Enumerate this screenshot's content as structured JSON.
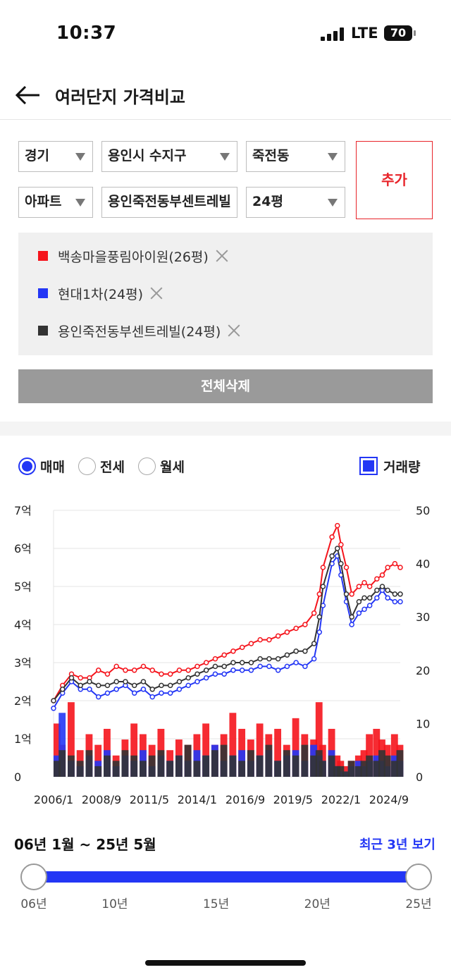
{
  "status_bar": {
    "time": "10:37",
    "network": "LTE",
    "battery": "70"
  },
  "header": {
    "title": "여러단지 가격비교"
  },
  "filters": {
    "region": "경기",
    "city": "용인시 수지구",
    "dong": "죽전동",
    "type": "아파트",
    "complex": "용인죽전동부센트레빌",
    "size": "24평",
    "add_label": "추가"
  },
  "selected": [
    {
      "label": "백송마을풍림아이원(26평)",
      "color": "#f5141c"
    },
    {
      "label": "현대1차(24평)",
      "color": "#2336f5"
    },
    {
      "label": "용인죽전동부센트레빌(24평)",
      "color": "#333333"
    }
  ],
  "delete_all_label": "전체삭제",
  "trade_types": {
    "sale": "매매",
    "jeonse": "전세",
    "monthly": "월세",
    "selected": "매매"
  },
  "volume_label": "거래량",
  "chart_data": {
    "type": "line",
    "x_tick_labels": [
      "2006/1",
      "2008/9",
      "2011/5",
      "2014/1",
      "2016/9",
      "2019/5",
      "2022/1",
      "2024/9"
    ],
    "y_left_labels": [
      "0",
      "1억",
      "2억",
      "3억",
      "4억",
      "5억",
      "6억",
      "7억"
    ],
    "y_right_labels": [
      "0",
      "10",
      "20",
      "30",
      "40",
      "50"
    ],
    "ylim_left": [
      0,
      7
    ],
    "ylim_right": [
      0,
      50
    ],
    "grid": true,
    "x": [
      2006.0,
      2006.5,
      2007.0,
      2007.5,
      2008.0,
      2008.5,
      2009.0,
      2009.5,
      2010.0,
      2010.5,
      2011.0,
      2011.5,
      2012.0,
      2012.5,
      2013.0,
      2013.5,
      2014.0,
      2014.5,
      2015.0,
      2015.5,
      2016.0,
      2016.5,
      2017.0,
      2017.5,
      2018.0,
      2018.5,
      2019.0,
      2019.5,
      2020.0,
      2020.5,
      2020.8,
      2021.0,
      2021.5,
      2021.8,
      2022.0,
      2022.3,
      2022.6,
      2023.0,
      2023.3,
      2023.6,
      2024.0,
      2024.3,
      2024.6,
      2025.0,
      2025.3
    ],
    "series": [
      {
        "name": "백송마을풍림아이원(26평)",
        "color": "#f5141c",
        "values": [
          2.0,
          2.4,
          2.7,
          2.6,
          2.6,
          2.8,
          2.7,
          2.9,
          2.8,
          2.8,
          2.9,
          2.8,
          2.7,
          2.7,
          2.8,
          2.8,
          2.9,
          3.0,
          3.1,
          3.2,
          3.3,
          3.4,
          3.5,
          3.6,
          3.6,
          3.7,
          3.8,
          3.9,
          4.0,
          4.3,
          4.8,
          5.5,
          6.3,
          6.6,
          6.1,
          5.5,
          4.8,
          5.0,
          5.1,
          5.0,
          5.2,
          5.3,
          5.5,
          5.6,
          5.5
        ]
      },
      {
        "name": "현대1차(24평)",
        "color": "#2336f5",
        "values": [
          1.8,
          2.2,
          2.5,
          2.3,
          2.3,
          2.1,
          2.2,
          2.3,
          2.4,
          2.2,
          2.3,
          2.1,
          2.2,
          2.2,
          2.3,
          2.4,
          2.5,
          2.6,
          2.7,
          2.7,
          2.8,
          2.8,
          2.8,
          2.9,
          2.9,
          2.8,
          2.9,
          3.0,
          2.9,
          3.1,
          3.8,
          4.5,
          5.6,
          5.8,
          5.3,
          4.6,
          4.0,
          4.3,
          4.4,
          4.5,
          4.7,
          4.9,
          4.7,
          4.6,
          4.6
        ]
      },
      {
        "name": "용인죽전동부센트레빌(24평)",
        "color": "#333333",
        "values": [
          2.0,
          2.3,
          2.6,
          2.4,
          2.5,
          2.4,
          2.4,
          2.5,
          2.5,
          2.4,
          2.5,
          2.3,
          2.4,
          2.4,
          2.5,
          2.6,
          2.7,
          2.8,
          2.9,
          2.9,
          3.0,
          3.0,
          3.0,
          3.1,
          3.1,
          3.1,
          3.2,
          3.3,
          3.3,
          3.5,
          4.2,
          5.0,
          5.8,
          6.0,
          5.6,
          4.8,
          4.2,
          4.6,
          4.7,
          4.7,
          4.9,
          5.0,
          4.9,
          4.8,
          4.8
        ]
      }
    ],
    "volume_bars": [
      {
        "color": "#f5141c",
        "values": [
          10,
          6,
          14,
          5,
          8,
          6,
          9,
          4,
          7,
          10,
          8,
          6,
          9,
          5,
          7,
          6,
          8,
          10,
          6,
          8,
          12,
          9,
          7,
          10,
          8,
          9,
          6,
          11,
          8,
          7,
          14,
          6,
          9,
          4,
          3,
          2,
          3,
          4,
          5,
          8,
          9,
          7,
          6,
          8,
          6
        ]
      },
      {
        "color": "#2336f5",
        "values": [
          4,
          12,
          3,
          2,
          4,
          3,
          5,
          2,
          4,
          3,
          5,
          2,
          4,
          3,
          4,
          3,
          5,
          4,
          6,
          3,
          4,
          5,
          3,
          4,
          5,
          3,
          4,
          5,
          3,
          6,
          4,
          3,
          5,
          2,
          1,
          1,
          2,
          3,
          2,
          3,
          4,
          3,
          2,
          4,
          3
        ]
      },
      {
        "color": "#333333",
        "values": [
          3,
          5,
          4,
          3,
          5,
          2,
          4,
          3,
          5,
          4,
          3,
          4,
          5,
          3,
          4,
          6,
          3,
          4,
          5,
          6,
          4,
          3,
          5,
          4,
          6,
          3,
          5,
          4,
          6,
          4,
          5,
          3,
          4,
          2,
          2,
          1,
          3,
          2,
          3,
          4,
          3,
          5,
          4,
          3,
          5
        ]
      }
    ]
  },
  "range": {
    "label": "06년 1월 ~ 25년 5월",
    "recent_label": "최근 3년 보기",
    "ticks": [
      "06년",
      "10년",
      "15년",
      "20년",
      "25년"
    ],
    "start_year": 2006,
    "end_year": 2025
  }
}
